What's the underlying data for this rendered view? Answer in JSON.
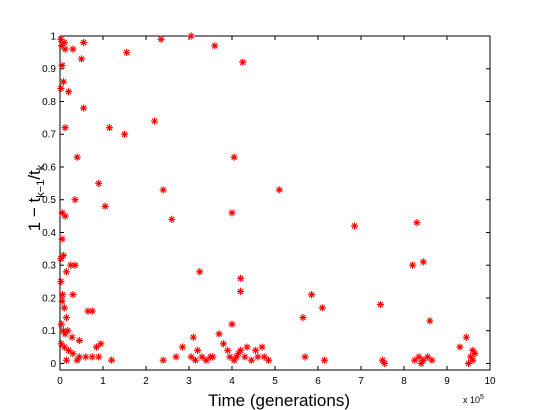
{
  "chart_data": {
    "type": "scatter",
    "title": "",
    "xlabel": "Time (generations)",
    "x_multiplier_label": "x 10",
    "x_multiplier_exponent": "5",
    "ylabel": {
      "prefix": "1 − t",
      "sub1": "k−1",
      "slash": "/t",
      "sub2": "k"
    },
    "xlim": [
      0,
      10
    ],
    "ylim": [
      -0.02,
      1
    ],
    "xticks": [
      "0",
      "1",
      "2",
      "3",
      "4",
      "5",
      "6",
      "7",
      "8",
      "9",
      "10"
    ],
    "yticks": [
      "0",
      "0.1",
      "0.2",
      "0.3",
      "0.4",
      "0.5",
      "0.6",
      "0.7",
      "0.8",
      "0.9",
      "1"
    ],
    "grid": false,
    "marker": "*",
    "color": "#ff0000",
    "series": [
      {
        "points": [
          [
            0.02,
            0.99
          ],
          [
            0.04,
            0.97
          ],
          [
            0.1,
            0.98
          ],
          [
            0.12,
            0.96
          ],
          [
            0.3,
            0.96
          ],
          [
            0.55,
            0.98
          ],
          [
            0.05,
            0.91
          ],
          [
            0.5,
            0.93
          ],
          [
            0.02,
            0.84
          ],
          [
            0.08,
            0.86
          ],
          [
            0.2,
            0.83
          ],
          [
            0.55,
            0.78
          ],
          [
            0.12,
            0.72
          ],
          [
            0.4,
            0.63
          ],
          [
            0.35,
            0.5
          ],
          [
            0.05,
            0.46
          ],
          [
            0.12,
            0.45
          ],
          [
            0.05,
            0.38
          ],
          [
            0.02,
            0.32
          ],
          [
            0.08,
            0.33
          ],
          [
            0.15,
            0.28
          ],
          [
            0.25,
            0.3
          ],
          [
            0.35,
            0.3
          ],
          [
            0.02,
            0.25
          ],
          [
            0.06,
            0.21
          ],
          [
            0.3,
            0.21
          ],
          [
            0.05,
            0.19
          ],
          [
            0.1,
            0.17
          ],
          [
            0.15,
            0.14
          ],
          [
            0.03,
            0.12
          ],
          [
            0.08,
            0.1
          ],
          [
            0.12,
            0.09
          ],
          [
            0.18,
            0.1
          ],
          [
            0.28,
            0.08
          ],
          [
            0.45,
            0.07
          ],
          [
            0.65,
            0.16
          ],
          [
            0.75,
            0.16
          ],
          [
            0.03,
            0.06
          ],
          [
            0.1,
            0.05
          ],
          [
            0.2,
            0.04
          ],
          [
            0.3,
            0.03
          ],
          [
            0.45,
            0.02
          ],
          [
            0.6,
            0.02
          ],
          [
            0.75,
            0.02
          ],
          [
            0.85,
            0.05
          ],
          [
            0.95,
            0.06
          ],
          [
            0.15,
            0.01
          ],
          [
            0.4,
            0.01
          ],
          [
            0.9,
            0.02
          ],
          [
            1.2,
            0.01
          ],
          [
            0.9,
            0.55
          ],
          [
            1.05,
            0.48
          ],
          [
            1.15,
            0.72
          ],
          [
            1.5,
            0.7
          ],
          [
            1.55,
            0.95
          ],
          [
            2.2,
            0.74
          ],
          [
            2.35,
            0.99
          ],
          [
            2.4,
            0.53
          ],
          [
            2.6,
            0.44
          ],
          [
            3.05,
            1.0
          ],
          [
            3.6,
            0.97
          ],
          [
            4.05,
            0.63
          ],
          [
            4.0,
            0.46
          ],
          [
            4.25,
            0.92
          ],
          [
            5.1,
            0.53
          ],
          [
            3.25,
            0.28
          ],
          [
            4.2,
            0.26
          ],
          [
            4.2,
            0.22
          ],
          [
            2.4,
            0.01
          ],
          [
            2.7,
            0.02
          ],
          [
            2.85,
            0.05
          ],
          [
            3.05,
            0.02
          ],
          [
            3.1,
            0.08
          ],
          [
            3.2,
            0.04
          ],
          [
            3.3,
            0.02
          ],
          [
            3.4,
            0.01
          ],
          [
            3.55,
            0.02
          ],
          [
            3.7,
            0.09
          ],
          [
            3.8,
            0.06
          ],
          [
            3.9,
            0.04
          ],
          [
            3.95,
            0.02
          ],
          [
            4.05,
            0.01
          ],
          [
            4.1,
            0.02
          ],
          [
            4.2,
            0.04
          ],
          [
            4.3,
            0.02
          ],
          [
            4.35,
            0.05
          ],
          [
            4.45,
            0.01
          ],
          [
            4.55,
            0.04
          ],
          [
            4.6,
            0.02
          ],
          [
            4.7,
            0.05
          ],
          [
            4.75,
            0.02
          ],
          [
            4.85,
            0.01
          ],
          [
            3.15,
            0.01
          ],
          [
            3.5,
            0.02
          ],
          [
            4.0,
            0.12
          ],
          [
            4.15,
            0.03
          ],
          [
            5.65,
            0.14
          ],
          [
            5.85,
            0.21
          ],
          [
            6.1,
            0.17
          ],
          [
            5.7,
            0.02
          ],
          [
            6.15,
            0.01
          ],
          [
            6.85,
            0.42
          ],
          [
            7.45,
            0.18
          ],
          [
            7.5,
            0.01
          ],
          [
            7.55,
            0.0
          ],
          [
            8.2,
            0.3
          ],
          [
            8.3,
            0.43
          ],
          [
            8.45,
            0.31
          ],
          [
            8.6,
            0.13
          ],
          [
            8.25,
            0.01
          ],
          [
            8.35,
            0.02
          ],
          [
            8.45,
            0.01
          ],
          [
            8.55,
            0.02
          ],
          [
            8.65,
            0.01
          ],
          [
            8.4,
            0.0
          ],
          [
            9.3,
            0.05
          ],
          [
            9.45,
            0.08
          ],
          [
            9.55,
            0.02
          ],
          [
            9.6,
            0.04
          ],
          [
            9.65,
            0.03
          ],
          [
            9.5,
            0.0
          ],
          [
            9.6,
            0.01
          ]
        ]
      }
    ]
  }
}
